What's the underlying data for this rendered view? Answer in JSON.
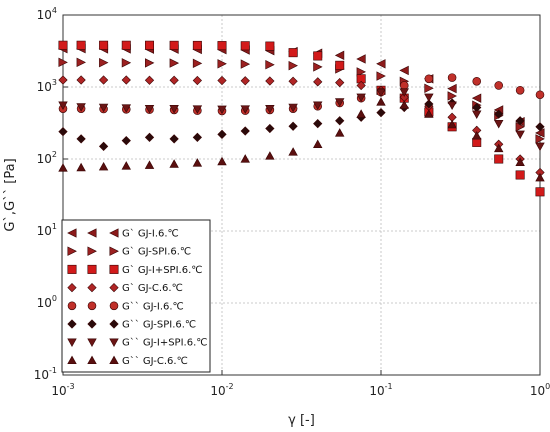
{
  "chart_data": {
    "type": "scatter",
    "xlabel": "γ [-]",
    "ylabel": "G`,G`` [Pa]",
    "xscale": "log",
    "yscale": "log",
    "xlim": [
      0.001,
      1
    ],
    "ylim": [
      0.1,
      10000
    ],
    "x_ticks": [
      {
        "base": "10",
        "exp": "-3",
        "value": 0.001
      },
      {
        "base": "10",
        "exp": "-2",
        "value": 0.01
      },
      {
        "base": "10",
        "exp": "-1",
        "value": 0.1
      },
      {
        "base": "10",
        "exp": "0",
        "value": 1
      }
    ],
    "y_ticks": [
      {
        "base": "10",
        "exp": "-1",
        "value": 0.1
      },
      {
        "base": "10",
        "exp": "0",
        "value": 1
      },
      {
        "base": "10",
        "exp": "1",
        "value": 10
      },
      {
        "base": "10",
        "exp": "2",
        "value": 100
      },
      {
        "base": "10",
        "exp": "3",
        "value": 1000
      },
      {
        "base": "10",
        "exp": "4",
        "value": 10000
      }
    ],
    "grid": true,
    "legend_position": "bottom-left",
    "series": [
      {
        "name": "G` GJ-I.6.℃",
        "marker": "triangle-left",
        "color": "#8b1a1a",
        "points": [
          [
            0.001,
            3400
          ],
          [
            0.0013,
            3400
          ],
          [
            0.0018,
            3380
          ],
          [
            0.0025,
            3380
          ],
          [
            0.0035,
            3350
          ],
          [
            0.005,
            3350
          ],
          [
            0.007,
            3320
          ],
          [
            0.01,
            3300
          ],
          [
            0.014,
            3260
          ],
          [
            0.02,
            3200
          ],
          [
            0.028,
            3100
          ],
          [
            0.04,
            2950
          ],
          [
            0.055,
            2750
          ],
          [
            0.075,
            2450
          ],
          [
            0.1,
            2100
          ],
          [
            0.14,
            1700
          ],
          [
            0.2,
            1300
          ],
          [
            0.28,
            950
          ],
          [
            0.4,
            700
          ],
          [
            0.55,
            480
          ],
          [
            0.75,
            330
          ],
          [
            1.0,
            230
          ]
        ]
      },
      {
        "name": "G` GJ-SPI.6.℃",
        "marker": "triangle-right",
        "color": "#9b2020",
        "points": [
          [
            0.001,
            2200
          ],
          [
            0.0013,
            2200
          ],
          [
            0.0018,
            2180
          ],
          [
            0.0025,
            2170
          ],
          [
            0.0035,
            2160
          ],
          [
            0.005,
            2150
          ],
          [
            0.007,
            2130
          ],
          [
            0.01,
            2100
          ],
          [
            0.014,
            2080
          ],
          [
            0.02,
            2040
          ],
          [
            0.028,
            1980
          ],
          [
            0.04,
            1900
          ],
          [
            0.055,
            1780
          ],
          [
            0.075,
            1620
          ],
          [
            0.1,
            1420
          ],
          [
            0.14,
            1200
          ],
          [
            0.2,
            960
          ],
          [
            0.28,
            750
          ],
          [
            0.4,
            560
          ],
          [
            0.55,
            400
          ],
          [
            0.75,
            280
          ],
          [
            1.0,
            190
          ]
        ]
      },
      {
        "name": "G` GJ-I+SPI.6.℃",
        "marker": "square",
        "color": "#d21a1a",
        "points": [
          [
            0.001,
            3800
          ],
          [
            0.0013,
            3800
          ],
          [
            0.0018,
            3800
          ],
          [
            0.0025,
            3800
          ],
          [
            0.0035,
            3800
          ],
          [
            0.005,
            3790
          ],
          [
            0.007,
            3780
          ],
          [
            0.01,
            3760
          ],
          [
            0.014,
            3740
          ],
          [
            0.02,
            3700
          ],
          [
            0.028,
            3000
          ],
          [
            0.04,
            2700
          ],
          [
            0.055,
            2000
          ],
          [
            0.075,
            1300
          ],
          [
            0.1,
            900
          ],
          [
            0.14,
            700
          ],
          [
            0.2,
            450
          ],
          [
            0.28,
            280
          ],
          [
            0.4,
            170
          ],
          [
            0.55,
            100
          ],
          [
            0.75,
            60
          ],
          [
            1.0,
            35
          ]
        ]
      },
      {
        "name": "G` GJ-C.6.℃",
        "marker": "diamond",
        "color": "#b02525",
        "points": [
          [
            0.001,
            1250
          ],
          [
            0.0013,
            1250
          ],
          [
            0.0018,
            1250
          ],
          [
            0.0025,
            1250
          ],
          [
            0.0035,
            1240
          ],
          [
            0.005,
            1240
          ],
          [
            0.007,
            1230
          ],
          [
            0.01,
            1230
          ],
          [
            0.014,
            1220
          ],
          [
            0.02,
            1210
          ],
          [
            0.028,
            1200
          ],
          [
            0.04,
            1180
          ],
          [
            0.055,
            1150
          ],
          [
            0.075,
            1050
          ],
          [
            0.1,
            900
          ],
          [
            0.14,
            720
          ],
          [
            0.2,
            540
          ],
          [
            0.28,
            380
          ],
          [
            0.4,
            250
          ],
          [
            0.55,
            160
          ],
          [
            0.75,
            100
          ],
          [
            1.0,
            65
          ]
        ]
      },
      {
        "name": "G`` GJ-I.6.℃",
        "marker": "circle",
        "color": "#c0302a",
        "points": [
          [
            0.001,
            500
          ],
          [
            0.0013,
            500
          ],
          [
            0.0018,
            495
          ],
          [
            0.0025,
            490
          ],
          [
            0.0035,
            485
          ],
          [
            0.005,
            480
          ],
          [
            0.007,
            470
          ],
          [
            0.01,
            465
          ],
          [
            0.014,
            470
          ],
          [
            0.02,
            480
          ],
          [
            0.028,
            500
          ],
          [
            0.04,
            540
          ],
          [
            0.055,
            600
          ],
          [
            0.075,
            700
          ],
          [
            0.1,
            850
          ],
          [
            0.14,
            1050
          ],
          [
            0.2,
            1300
          ],
          [
            0.28,
            1350
          ],
          [
            0.4,
            1200
          ],
          [
            0.55,
            1050
          ],
          [
            0.75,
            900
          ],
          [
            1.0,
            780
          ]
        ]
      },
      {
        "name": "G`` GJ-SPI.6.℃",
        "marker": "diamond",
        "color": "#2a0a0a",
        "points": [
          [
            0.001,
            240
          ],
          [
            0.0013,
            190
          ],
          [
            0.0018,
            150
          ],
          [
            0.0025,
            180
          ],
          [
            0.0035,
            200
          ],
          [
            0.005,
            190
          ],
          [
            0.007,
            200
          ],
          [
            0.01,
            220
          ],
          [
            0.014,
            245
          ],
          [
            0.02,
            265
          ],
          [
            0.028,
            285
          ],
          [
            0.04,
            310
          ],
          [
            0.055,
            340
          ],
          [
            0.075,
            380
          ],
          [
            0.1,
            440
          ],
          [
            0.14,
            520
          ],
          [
            0.2,
            580
          ],
          [
            0.28,
            600
          ],
          [
            0.4,
            520
          ],
          [
            0.55,
            420
          ],
          [
            0.75,
            340
          ],
          [
            1.0,
            280
          ]
        ]
      },
      {
        "name": "G`` GJ-I+SPI.6.℃",
        "marker": "triangle-down",
        "color": "#6b1515",
        "points": [
          [
            0.001,
            560
          ],
          [
            0.0013,
            530
          ],
          [
            0.0018,
            520
          ],
          [
            0.0025,
            510
          ],
          [
            0.0035,
            500
          ],
          [
            0.005,
            500
          ],
          [
            0.007,
            495
          ],
          [
            0.01,
            490
          ],
          [
            0.014,
            495
          ],
          [
            0.02,
            500
          ],
          [
            0.028,
            520
          ],
          [
            0.04,
            560
          ],
          [
            0.055,
            620
          ],
          [
            0.075,
            720
          ],
          [
            0.1,
            840
          ],
          [
            0.14,
            850
          ],
          [
            0.2,
            720
          ],
          [
            0.28,
            560
          ],
          [
            0.4,
            420
          ],
          [
            0.55,
            310
          ],
          [
            0.75,
            220
          ],
          [
            1.0,
            150
          ]
        ]
      },
      {
        "name": "G`` GJ-C.6.℃",
        "marker": "triangle-up",
        "color": "#5a0f0f",
        "points": [
          [
            0.001,
            75
          ],
          [
            0.0013,
            76
          ],
          [
            0.0018,
            78
          ],
          [
            0.0025,
            80
          ],
          [
            0.0035,
            82
          ],
          [
            0.005,
            85
          ],
          [
            0.007,
            88
          ],
          [
            0.01,
            92
          ],
          [
            0.014,
            100
          ],
          [
            0.02,
            110
          ],
          [
            0.028,
            125
          ],
          [
            0.04,
            160
          ],
          [
            0.055,
            230
          ],
          [
            0.075,
            420
          ],
          [
            0.1,
            620
          ],
          [
            0.14,
            560
          ],
          [
            0.2,
            420
          ],
          [
            0.28,
            300
          ],
          [
            0.4,
            210
          ],
          [
            0.55,
            140
          ],
          [
            0.75,
            90
          ],
          [
            1.0,
            55
          ]
        ]
      }
    ]
  }
}
